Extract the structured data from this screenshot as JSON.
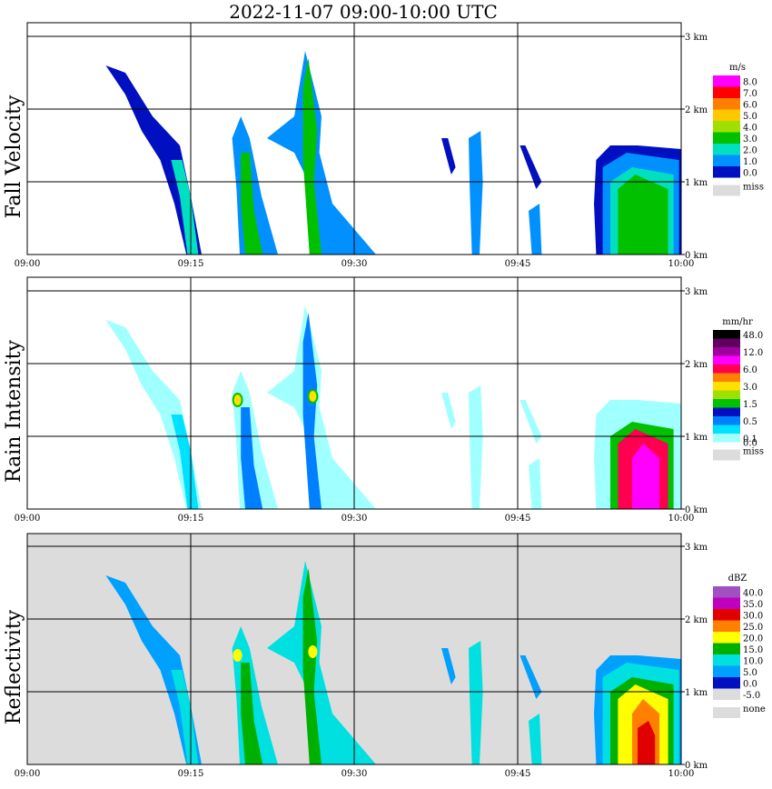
{
  "title": "2022-11-07   09:00-10:00 UTC",
  "chart_data": [
    {
      "type": "heatmap",
      "panel_label": "Fall Velocity",
      "unit": "m/s",
      "x_ticks": [
        "09:00",
        "09:15",
        "09:30",
        "09:45",
        "10:00"
      ],
      "y_ticks": [
        "0 km",
        "1 km",
        "2 km",
        "3 km"
      ],
      "ylim": [
        0,
        3.0
      ],
      "xlim": [
        "09:00",
        "10:00"
      ],
      "grid": true,
      "legend": [
        {
          "label": "8.0",
          "color": "#ff00ff"
        },
        {
          "label": "7.0",
          "color": "#ff0000"
        },
        {
          "label": "6.0",
          "color": "#ff8000"
        },
        {
          "label": "5.0",
          "color": "#ffc800"
        },
        {
          "label": "4.0",
          "color": "#a0e000"
        },
        {
          "label": "3.0",
          "color": "#00c000"
        },
        {
          "label": "2.0",
          "color": "#00e0c0"
        },
        {
          "label": "1.0",
          "color": "#0090ff"
        },
        {
          "label": "0.0",
          "color": "#0010c0"
        }
      ],
      "miss_label": "miss",
      "miss_color": "#dcdcdc",
      "background": "#ffffff"
    },
    {
      "type": "heatmap",
      "panel_label": "Rain Intensity",
      "unit": "mm/hr",
      "x_ticks": [
        "09:00",
        "09:15",
        "09:30",
        "09:45",
        "10:00"
      ],
      "y_ticks": [
        "0 km",
        "1 km",
        "2 km",
        "3 km"
      ],
      "ylim": [
        0,
        3.0
      ],
      "xlim": [
        "09:00",
        "10:00"
      ],
      "grid": true,
      "legend": [
        {
          "label": "48.0",
          "color": "#000000"
        },
        {
          "label": "",
          "color": "#600060"
        },
        {
          "label": "12.0",
          "color": "#a000a0"
        },
        {
          "label": "",
          "color": "#ff00ff"
        },
        {
          "label": "6.0",
          "color": "#ff0050"
        },
        {
          "label": "",
          "color": "#ff8000"
        },
        {
          "label": "3.0",
          "color": "#ffe000"
        },
        {
          "label": "",
          "color": "#a0e000"
        },
        {
          "label": "1.5",
          "color": "#00c000"
        },
        {
          "label": "",
          "color": "#0010c0"
        },
        {
          "label": "0.5",
          "color": "#0080ff"
        },
        {
          "label": "",
          "color": "#00e0ff"
        },
        {
          "label": "0.1",
          "color": "#a0ffff"
        }
      ],
      "bottom_label": "0.0",
      "miss_label": "miss",
      "miss_color": "#dcdcdc",
      "background": "#ffffff"
    },
    {
      "type": "heatmap",
      "panel_label": "Reflectivity",
      "unit": "dBZ",
      "x_ticks": [
        "09:00",
        "09:15",
        "09:30",
        "09:45",
        "10:00"
      ],
      "y_ticks": [
        "0 km",
        "1 km",
        "2 km",
        "3 km"
      ],
      "ylim": [
        0,
        3.0
      ],
      "xlim": [
        "09:00",
        "10:00"
      ],
      "grid": true,
      "legend": [
        {
          "label": "40.0",
          "color": "#a050c0"
        },
        {
          "label": "35.0",
          "color": "#c000c0"
        },
        {
          "label": "30.0",
          "color": "#e00000"
        },
        {
          "label": "25.0",
          "color": "#ff8000"
        },
        {
          "label": "20.0",
          "color": "#ffff00"
        },
        {
          "label": "15.0",
          "color": "#00b000"
        },
        {
          "label": "10.0",
          "color": "#00e0e0"
        },
        {
          "label": "5.0",
          "color": "#00a0ff"
        },
        {
          "label": "0.0",
          "color": "#0010c0"
        },
        {
          "label": "-5.0",
          "color": "#dcdcdc"
        }
      ],
      "miss_label": "none",
      "miss_color": "#dcdcdc",
      "background": "#dcdcdc"
    }
  ]
}
